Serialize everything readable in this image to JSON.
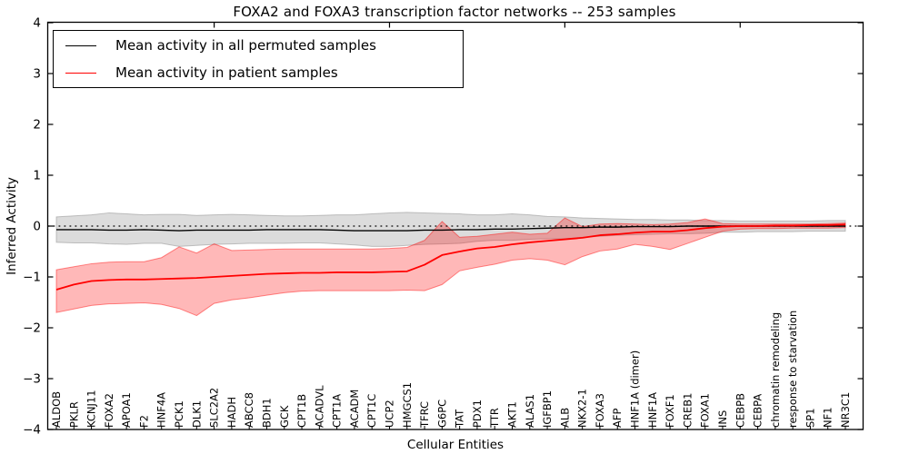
{
  "chart_data": {
    "type": "line",
    "title": "FOXA2 and FOXA3 transcription factor networks -- 253 samples",
    "xlabel": "Cellular Entities",
    "ylabel": "Inferred Activity",
    "ylim": [
      -4,
      4
    ],
    "yticks": [
      4,
      3,
      2,
      1,
      0,
      -1,
      -2,
      -3,
      -4
    ],
    "grid": false,
    "zero_line_style": "dotted",
    "legend_position": "upper left",
    "categories": [
      "ALDOB",
      "PKLR",
      "KCNJ11",
      "FOXA2",
      "APOA1",
      "F2",
      "HNF4A",
      "PCK1",
      "DLK1",
      "SLC2A2",
      "HADH",
      "ABCC8",
      "BDH1",
      "GCK",
      "CPT1B",
      "ACADVL",
      "CPT1A",
      "ACADM",
      "CPT1C",
      "UCP2",
      "HMGCS1",
      "TFRC",
      "G6PC",
      "TAT",
      "PDX1",
      "TTR",
      "AKT1",
      "ALAS1",
      "IGFBP1",
      "ALB",
      "NKX2-1",
      "FOXA3",
      "AFP",
      "HNF1A (dimer)",
      "HNF1A",
      "FOXF1",
      "CREB1",
      "FOXA1",
      "INS",
      "CEBPB",
      "CEBPA",
      "chromatin remodeling",
      "response to starvation",
      "SP1",
      "NF1",
      "NR3C1"
    ],
    "series": [
      {
        "name": "Mean activity in all permuted samples",
        "color": "#000000",
        "band_color": "#808080",
        "values": [
          -0.07,
          -0.07,
          -0.07,
          -0.08,
          -0.08,
          -0.07,
          -0.08,
          -0.09,
          -0.08,
          -0.08,
          -0.08,
          -0.08,
          -0.07,
          -0.07,
          -0.07,
          -0.07,
          -0.08,
          -0.09,
          -0.09,
          -0.09,
          -0.09,
          -0.08,
          -0.08,
          -0.07,
          -0.07,
          -0.06,
          -0.06,
          -0.05,
          -0.04,
          -0.03,
          -0.03,
          -0.02,
          -0.02,
          -0.01,
          -0.01,
          -0.01,
          0.0,
          0.0,
          0.0,
          0.0,
          0.0,
          0.0,
          0.0,
          0.0,
          0.0,
          0.0
        ],
        "band_lo": [
          -0.32,
          -0.33,
          -0.33,
          -0.35,
          -0.36,
          -0.34,
          -0.34,
          -0.4,
          -0.38,
          -0.36,
          -0.35,
          -0.34,
          -0.34,
          -0.34,
          -0.33,
          -0.33,
          -0.35,
          -0.37,
          -0.4,
          -0.4,
          -0.38,
          -0.36,
          -0.35,
          -0.34,
          -0.3,
          -0.28,
          -0.28,
          -0.26,
          -0.25,
          -0.25,
          -0.22,
          -0.2,
          -0.18,
          -0.17,
          -0.16,
          -0.15,
          -0.15,
          -0.14,
          -0.12,
          -0.12,
          -0.11,
          -0.11,
          -0.11,
          -0.1,
          -0.1,
          -0.1
        ],
        "band_hi": [
          0.18,
          0.2,
          0.22,
          0.26,
          0.24,
          0.22,
          0.23,
          0.23,
          0.21,
          0.22,
          0.23,
          0.22,
          0.21,
          0.2,
          0.2,
          0.21,
          0.22,
          0.22,
          0.24,
          0.26,
          0.27,
          0.26,
          0.25,
          0.24,
          0.22,
          0.22,
          0.24,
          0.22,
          0.19,
          0.18,
          0.16,
          0.15,
          0.14,
          0.13,
          0.13,
          0.12,
          0.12,
          0.11,
          0.11,
          0.1,
          0.1,
          0.1,
          0.1,
          0.1,
          0.11,
          0.11
        ]
      },
      {
        "name": "Mean activity in patient samples",
        "color": "#ff0000",
        "band_color": "#ff0000",
        "values": [
          -1.25,
          -1.15,
          -1.08,
          -1.06,
          -1.05,
          -1.05,
          -1.04,
          -1.03,
          -1.02,
          -1.0,
          -0.98,
          -0.96,
          -0.94,
          -0.93,
          -0.92,
          -0.92,
          -0.91,
          -0.91,
          -0.91,
          -0.9,
          -0.89,
          -0.76,
          -0.57,
          -0.5,
          -0.44,
          -0.41,
          -0.36,
          -0.32,
          -0.29,
          -0.26,
          -0.23,
          -0.18,
          -0.16,
          -0.13,
          -0.11,
          -0.11,
          -0.08,
          -0.04,
          -0.01,
          0.0,
          0.0,
          0.01,
          0.01,
          0.02,
          0.02,
          0.03
        ],
        "band_lo": [
          -1.7,
          -1.63,
          -1.56,
          -1.53,
          -1.52,
          -1.51,
          -1.54,
          -1.62,
          -1.76,
          -1.52,
          -1.45,
          -1.41,
          -1.36,
          -1.31,
          -1.28,
          -1.27,
          -1.27,
          -1.27,
          -1.27,
          -1.27,
          -1.26,
          -1.27,
          -1.15,
          -0.88,
          -0.81,
          -0.75,
          -0.67,
          -0.64,
          -0.67,
          -0.76,
          -0.6,
          -0.49,
          -0.45,
          -0.36,
          -0.4,
          -0.46,
          -0.34,
          -0.22,
          -0.1,
          -0.06,
          -0.05,
          -0.05,
          -0.04,
          -0.04,
          -0.04,
          -0.03
        ],
        "band_hi": [
          -0.86,
          -0.8,
          -0.74,
          -0.71,
          -0.7,
          -0.7,
          -0.62,
          -0.41,
          -0.53,
          -0.35,
          -0.48,
          -0.47,
          -0.46,
          -0.45,
          -0.45,
          -0.45,
          -0.45,
          -0.45,
          -0.45,
          -0.44,
          -0.42,
          -0.28,
          0.09,
          -0.22,
          -0.2,
          -0.16,
          -0.12,
          -0.16,
          -0.14,
          0.16,
          -0.01,
          0.04,
          0.05,
          0.04,
          0.03,
          0.04,
          0.07,
          0.14,
          0.05,
          0.04,
          0.04,
          0.04,
          0.04,
          0.04,
          0.05,
          0.06
        ]
      }
    ]
  }
}
